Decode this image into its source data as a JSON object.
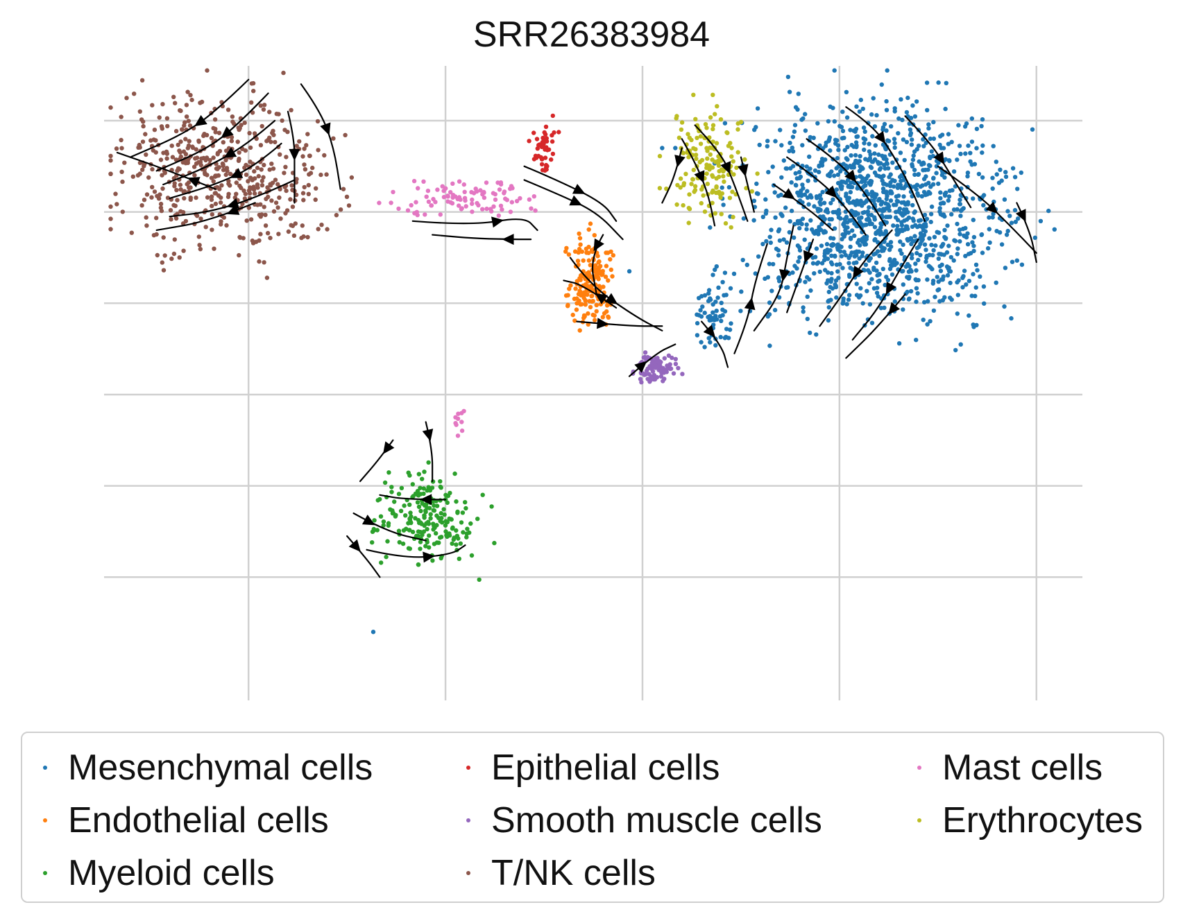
{
  "title": "SRR26383984",
  "chart_data": {
    "type": "scatter",
    "title": "SRR26383984",
    "xlabel": "",
    "ylabel": "",
    "xlim": [
      -6.2,
      8.7
    ],
    "ylim": [
      -10.7,
      3.2
    ],
    "grid": true,
    "x_gridlines": [
      -4,
      -1,
      2,
      5,
      8
    ],
    "y_gridlines": [
      2,
      0,
      -2,
      -4,
      -6,
      -8
    ],
    "axis_ticks_labeled": false,
    "overlay": "velocity streamlines with arrowheads",
    "legend_position": "bottom",
    "legend_columns": 3,
    "series": [
      {
        "name": "Mesenchymal cells",
        "color": "#1f77b4",
        "approx_points": 1400,
        "clusters": [
          {
            "center": [
              5.6,
              0.0
            ],
            "spread": [
              1.9,
              2.3
            ],
            "n": 1300
          },
          {
            "center": [
              3.1,
              -2.2
            ],
            "spread": [
              0.3,
              0.8
            ],
            "n": 60
          }
        ],
        "outliers": [
          [
            2.3,
            1.4
          ],
          [
            2.5,
            1.4
          ],
          [
            1.8,
            -1.3
          ],
          [
            -2.1,
            -9.2
          ]
        ]
      },
      {
        "name": "Endothelial cells",
        "color": "#ff7f0e",
        "approx_points": 170,
        "clusters": [
          {
            "center": [
              1.2,
              -1.5
            ],
            "spread": [
              0.35,
              1.0
            ],
            "n": 170
          }
        ]
      },
      {
        "name": "Myeloid cells",
        "color": "#2ca02c",
        "approx_points": 200,
        "clusters": [
          {
            "center": [
              -1.3,
              -6.7
            ],
            "spread": [
              0.7,
              0.9
            ],
            "n": 210
          }
        ]
      },
      {
        "name": "Epithelial cells",
        "color": "#d62728",
        "approx_points": 45,
        "clusters": [
          {
            "center": [
              0.5,
              1.4
            ],
            "spread": [
              0.17,
              0.55
            ],
            "n": 45
          }
        ]
      },
      {
        "name": "Smooth muscle cells",
        "color": "#9467bd",
        "approx_points": 90,
        "clusters": [
          {
            "center": [
              2.2,
              -3.4
            ],
            "spread": [
              0.35,
              0.35
            ],
            "n": 90
          }
        ]
      },
      {
        "name": "T/NK cells",
        "color": "#8c564b",
        "approx_points": 520,
        "clusters": [
          {
            "center": [
              -4.4,
              0.9
            ],
            "spread": [
              1.6,
              1.7
            ],
            "n": 520
          }
        ]
      },
      {
        "name": "Mast cells",
        "color": "#e377c2",
        "approx_points": 110,
        "clusters": [
          {
            "center": [
              -0.7,
              0.3
            ],
            "spread": [
              1.0,
              0.4
            ],
            "n": 95
          },
          {
            "center": [
              -0.8,
              -4.6
            ],
            "spread": [
              0.07,
              0.3
            ],
            "n": 10
          }
        ]
      },
      {
        "name": "Erythrocytes",
        "color": "#bcbd22",
        "approx_points": 170,
        "clusters": [
          {
            "center": [
              3.0,
              1.1
            ],
            "spread": [
              0.55,
              1.2
            ],
            "n": 160
          }
        ]
      }
    ],
    "streamlines": [
      [
        [
          -4.0,
          2.9
        ],
        [
          -4.5,
          2.2
        ],
        [
          -5.0,
          1.7
        ],
        [
          -5.8,
          1.2
        ]
      ],
      [
        [
          -3.7,
          2.6
        ],
        [
          -4.1,
          2.0
        ],
        [
          -4.6,
          1.4
        ],
        [
          -5.4,
          0.9
        ]
      ],
      [
        [
          -3.6,
          2.0
        ],
        [
          -4.0,
          1.5
        ],
        [
          -4.6,
          1.0
        ],
        [
          -5.3,
          0.6
        ]
      ],
      [
        [
          -3.5,
          1.5
        ],
        [
          -3.9,
          1.0
        ],
        [
          -4.5,
          0.6
        ],
        [
          -5.2,
          0.3
        ]
      ],
      [
        [
          -3.3,
          0.7
        ],
        [
          -3.9,
          0.3
        ],
        [
          -4.6,
          0.0
        ],
        [
          -5.2,
          -0.1
        ]
      ],
      [
        [
          -3.2,
          2.8
        ],
        [
          -2.9,
          2.2
        ],
        [
          -2.7,
          1.4
        ],
        [
          -2.6,
          0.5
        ]
      ],
      [
        [
          -3.4,
          2.2
        ],
        [
          -3.3,
          1.6
        ],
        [
          -3.3,
          0.9
        ],
        [
          -3.3,
          0.2
        ]
      ],
      [
        [
          -3.9,
          0.2
        ],
        [
          -4.6,
          -0.2
        ],
        [
          -5.4,
          -0.4
        ]
      ],
      [
        [
          -4.5,
          0.5
        ],
        [
          -5.2,
          0.9
        ],
        [
          -6.0,
          1.3
        ]
      ],
      [
        [
          -1.5,
          -0.2
        ],
        [
          -0.6,
          -0.3
        ],
        [
          0.2,
          -0.1
        ],
        [
          0.4,
          -0.4
        ]
      ],
      [
        [
          0.3,
          -0.6
        ],
        [
          -0.4,
          -0.6
        ],
        [
          -1.2,
          -0.5
        ]
      ],
      [
        [
          0.2,
          1.0
        ],
        [
          0.7,
          0.7
        ],
        [
          1.4,
          0.2
        ],
        [
          1.6,
          -0.2
        ]
      ],
      [
        [
          0.2,
          0.7
        ],
        [
          0.7,
          0.4
        ],
        [
          1.3,
          0.0
        ],
        [
          1.7,
          -0.6
        ]
      ],
      [
        [
          2.6,
          1.6
        ],
        [
          2.8,
          1.1
        ],
        [
          3.0,
          0.4
        ],
        [
          3.1,
          -0.3
        ]
      ],
      [
        [
          2.8,
          1.9
        ],
        [
          3.2,
          1.3
        ],
        [
          3.4,
          0.6
        ],
        [
          3.6,
          -0.2
        ]
      ],
      [
        [
          3.5,
          1.2
        ],
        [
          3.6,
          0.6
        ],
        [
          3.7,
          0.0
        ]
      ],
      [
        [
          2.6,
          1.4
        ],
        [
          2.5,
          0.8
        ],
        [
          2.3,
          0.2
        ]
      ],
      [
        [
          1.4,
          -0.5
        ],
        [
          1.2,
          -1.0
        ],
        [
          1.3,
          -1.8
        ]
      ],
      [
        [
          0.9,
          -1.0
        ],
        [
          1.2,
          -1.6
        ],
        [
          1.9,
          -2.3
        ],
        [
          2.3,
          -2.6
        ]
      ],
      [
        [
          1.6,
          -2.1
        ],
        [
          1.1,
          -1.6
        ],
        [
          0.8,
          -1.5
        ]
      ],
      [
        [
          1.0,
          -2.4
        ],
        [
          1.8,
          -2.5
        ],
        [
          2.3,
          -2.5
        ]
      ],
      [
        [
          1.8,
          -3.6
        ],
        [
          2.2,
          -3.1
        ],
        [
          2.5,
          -2.9
        ]
      ],
      [
        [
          5.1,
          2.3
        ],
        [
          5.5,
          1.9
        ],
        [
          5.8,
          1.3
        ],
        [
          6.1,
          0.5
        ],
        [
          6.3,
          -0.2
        ]
      ],
      [
        [
          4.2,
          1.2
        ],
        [
          4.7,
          0.7
        ],
        [
          5.1,
          0.1
        ],
        [
          5.4,
          -0.5
        ]
      ],
      [
        [
          4.5,
          1.6
        ],
        [
          5.0,
          1.1
        ],
        [
          5.4,
          0.4
        ],
        [
          5.7,
          -0.3
        ]
      ],
      [
        [
          4.0,
          0.6
        ],
        [
          4.5,
          0.1
        ],
        [
          4.9,
          -0.4
        ]
      ],
      [
        [
          6.0,
          2.1
        ],
        [
          6.4,
          1.5
        ],
        [
          6.7,
          0.8
        ],
        [
          7.0,
          0.1
        ]
      ],
      [
        [
          6.5,
          1.0
        ],
        [
          7.1,
          0.4
        ],
        [
          7.6,
          -0.3
        ],
        [
          8.0,
          -0.9
        ]
      ],
      [
        [
          7.7,
          0.2
        ],
        [
          7.9,
          -0.4
        ],
        [
          8.0,
          -1.1
        ]
      ],
      [
        [
          5.8,
          -0.4
        ],
        [
          5.4,
          -1.0
        ],
        [
          5.1,
          -1.7
        ],
        [
          4.7,
          -2.5
        ]
      ],
      [
        [
          6.2,
          -0.6
        ],
        [
          5.9,
          -1.3
        ],
        [
          5.6,
          -2.1
        ],
        [
          5.2,
          -2.8
        ]
      ],
      [
        [
          6.0,
          -1.8
        ],
        [
          5.6,
          -2.5
        ],
        [
          5.1,
          -3.2
        ]
      ],
      [
        [
          4.3,
          -0.3
        ],
        [
          4.2,
          -1.0
        ],
        [
          4.1,
          -1.8
        ],
        [
          3.7,
          -2.6
        ]
      ],
      [
        [
          4.6,
          -0.6
        ],
        [
          4.4,
          -1.4
        ],
        [
          4.2,
          -2.2
        ]
      ],
      [
        [
          3.4,
          -3.1
        ],
        [
          3.6,
          -2.4
        ],
        [
          3.7,
          -1.6
        ],
        [
          3.9,
          -0.7
        ]
      ],
      [
        [
          2.9,
          -2.4
        ],
        [
          3.2,
          -2.9
        ],
        [
          3.3,
          -3.4
        ]
      ],
      [
        [
          -1.3,
          -4.6
        ],
        [
          -1.2,
          -5.2
        ],
        [
          -1.2,
          -5.9
        ]
      ],
      [
        [
          -1.8,
          -5.0
        ],
        [
          -2.0,
          -5.4
        ],
        [
          -2.3,
          -5.9
        ]
      ],
      [
        [
          -1.0,
          -6.3
        ],
        [
          -1.6,
          -6.3
        ],
        [
          -2.0,
          -6.2
        ]
      ],
      [
        [
          -2.4,
          -6.6
        ],
        [
          -1.9,
          -7.0
        ],
        [
          -1.3,
          -7.2
        ]
      ],
      [
        [
          -2.2,
          -7.4
        ],
        [
          -1.6,
          -7.6
        ],
        [
          -0.9,
          -7.5
        ],
        [
          -0.7,
          -7.3
        ]
      ],
      [
        [
          -2.5,
          -7.1
        ],
        [
          -2.2,
          -7.6
        ],
        [
          -2.0,
          -8.0
        ]
      ]
    ]
  },
  "legend": {
    "items": [
      {
        "label": "Mesenchymal cells",
        "color": "#1f77b4"
      },
      {
        "label": "Endothelial cells",
        "color": "#ff7f0e"
      },
      {
        "label": "Myeloid cells",
        "color": "#2ca02c"
      },
      {
        "label": "Epithelial cells",
        "color": "#d62728"
      },
      {
        "label": "Smooth muscle cells",
        "color": "#9467bd"
      },
      {
        "label": "T/NK cells",
        "color": "#8c564b"
      },
      {
        "label": "Mast cells",
        "color": "#e377c2"
      },
      {
        "label": "Erythrocytes",
        "color": "#bcbd22"
      }
    ]
  }
}
